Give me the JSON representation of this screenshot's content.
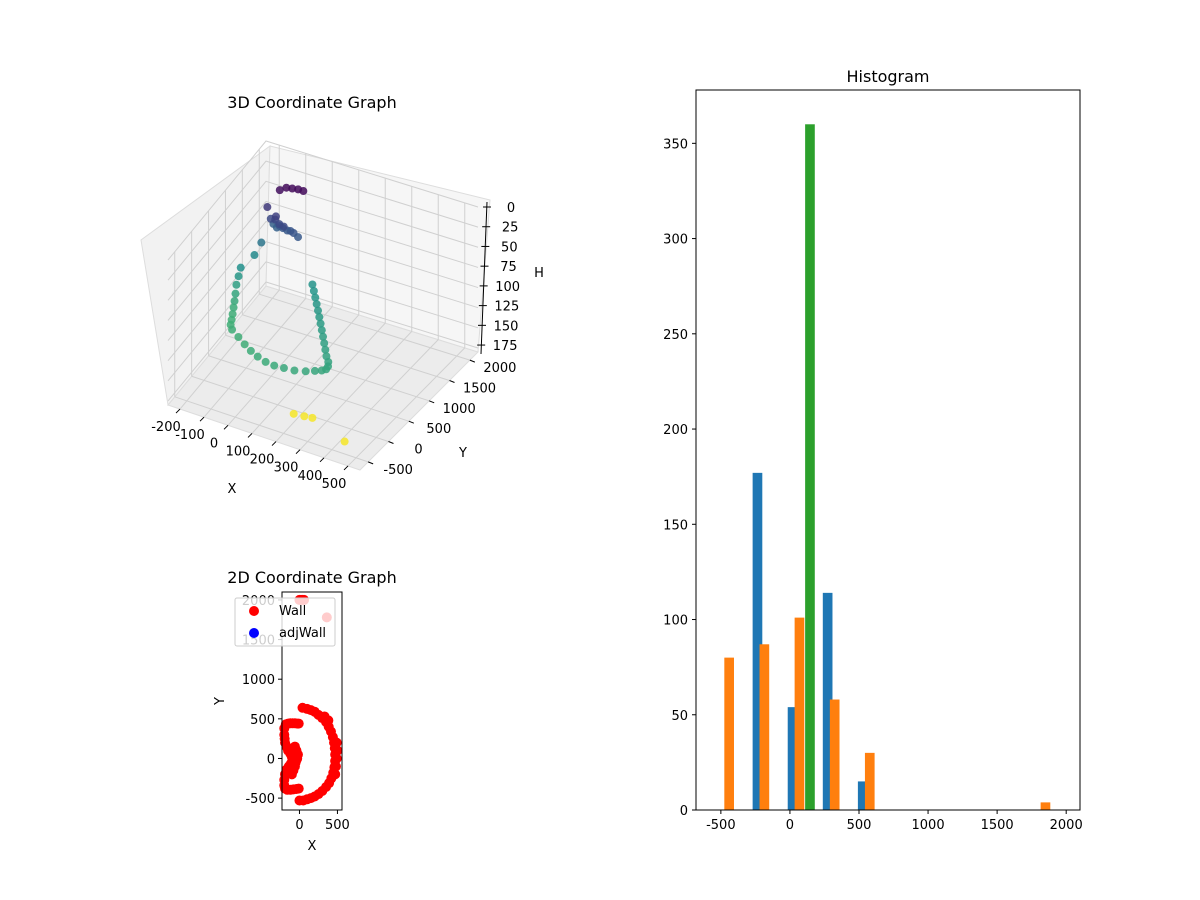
{
  "chart_data": [
    {
      "type": "scatter",
      "projection": "3d",
      "title": "3D Coordinate Graph",
      "xlabel": "X",
      "ylabel": "Y",
      "zlabel": "H",
      "xlim": [
        -250,
        550
      ],
      "ylim": [
        -700,
        2200
      ],
      "zlim": [
        0,
        180
      ],
      "z_inverted": true,
      "x_ticks": [
        -200,
        -100,
        0,
        100,
        200,
        300,
        400,
        500
      ],
      "y_ticks": [
        -500,
        0,
        500,
        1000,
        1500,
        2000
      ],
      "z_ticks": [
        0,
        25,
        50,
        75,
        100,
        125,
        150,
        175
      ],
      "colormap": "viridis",
      "grid": true,
      "points": [
        [
          -130,
          1500,
          55
        ],
        [
          -110,
          1450,
          55
        ],
        [
          -95,
          1420,
          50
        ],
        [
          -80,
          1400,
          50
        ],
        [
          -60,
          1380,
          50
        ],
        [
          -45,
          1360,
          48
        ],
        [
          -30,
          1340,
          48
        ],
        [
          -10,
          1320,
          50
        ],
        [
          -120,
          1350,
          40
        ],
        [
          -100,
          1330,
          38
        ],
        [
          -80,
          1300,
          40
        ],
        [
          -60,
          1280,
          40
        ],
        [
          -150,
          1300,
          70
        ],
        [
          -170,
          1250,
          85
        ],
        [
          -190,
          1000,
          90
        ],
        [
          -185,
          900,
          95
        ],
        [
          -180,
          800,
          100
        ],
        [
          -170,
          700,
          105
        ],
        [
          -160,
          600,
          108
        ],
        [
          -150,
          500,
          110
        ],
        [
          -140,
          400,
          112
        ],
        [
          -130,
          300,
          113
        ],
        [
          -120,
          200,
          113
        ],
        [
          -100,
          100,
          112
        ],
        [
          -60,
          0,
          112
        ],
        [
          -20,
          -100,
          112
        ],
        [
          20,
          -200,
          111
        ],
        [
          60,
          -280,
          110
        ],
        [
          100,
          -330,
          110
        ],
        [
          140,
          -360,
          109
        ],
        [
          180,
          -360,
          108
        ],
        [
          220,
          -340,
          108
        ],
        [
          260,
          -300,
          107
        ],
        [
          290,
          -250,
          106
        ],
        [
          310,
          -200,
          106
        ],
        [
          320,
          -150,
          106
        ],
        [
          320,
          -100,
          105
        ],
        [
          310,
          -30,
          104
        ],
        [
          290,
          50,
          103
        ],
        [
          270,
          150,
          102
        ],
        [
          250,
          250,
          101
        ],
        [
          230,
          350,
          100
        ],
        [
          210,
          450,
          99
        ],
        [
          190,
          550,
          98
        ],
        [
          170,
          650,
          97
        ],
        [
          150,
          750,
          96
        ],
        [
          130,
          850,
          95
        ],
        [
          110,
          950,
          94
        ],
        [
          90,
          1050,
          93
        ],
        [
          70,
          1150,
          92
        ],
        [
          -80,
          1500,
          5
        ],
        [
          -60,
          1520,
          5
        ],
        [
          -40,
          1540,
          5
        ],
        [
          -20,
          1540,
          5
        ],
        [
          -100,
          1460,
          8
        ],
        [
          -140,
          1400,
          30
        ],
        [
          -100,
          1350,
          35
        ],
        [
          180,
          -100,
          178
        ],
        [
          220,
          -80,
          178
        ],
        [
          250,
          -60,
          178
        ],
        [
          420,
          -300,
          178
        ]
      ]
    },
    {
      "type": "scatter",
      "title": "2D Coordinate Graph",
      "xlabel": "X",
      "ylabel": "Y",
      "xlim": [
        -230,
        560
      ],
      "ylim": [
        -650,
        2100
      ],
      "x_ticks": [
        0,
        500
      ],
      "y_ticks": [
        -500,
        0,
        500,
        1000,
        1500,
        2000
      ],
      "legend": {
        "placement": "upper left"
      },
      "series": [
        {
          "name": "Wall",
          "color": "#ff0000",
          "points": [
            [
              -180,
              430
            ],
            [
              -150,
              440
            ],
            [
              -120,
              445
            ],
            [
              -90,
              445
            ],
            [
              -60,
              445
            ],
            [
              -30,
              440
            ],
            [
              -10,
              440
            ],
            [
              -200,
              380
            ],
            [
              -200,
              300
            ],
            [
              -195,
              250
            ],
            [
              -190,
              200
            ],
            [
              -170,
              150
            ],
            [
              -150,
              100
            ],
            [
              -120,
              60
            ],
            [
              -100,
              20
            ],
            [
              -90,
              -20
            ],
            [
              -110,
              -60
            ],
            [
              -140,
              -100
            ],
            [
              -170,
              -140
            ],
            [
              -190,
              -200
            ],
            [
              -200,
              -270
            ],
            [
              -200,
              -340
            ],
            [
              -190,
              -380
            ],
            [
              -160,
              -395
            ],
            [
              -120,
              -395
            ],
            [
              -80,
              -390
            ],
            [
              -40,
              -385
            ],
            [
              -10,
              -380
            ],
            [
              -80,
              120
            ],
            [
              -60,
              150
            ],
            [
              -40,
              100
            ],
            [
              -20,
              50
            ],
            [
              -30,
              0
            ],
            [
              -50,
              -50
            ],
            [
              -60,
              -100
            ],
            [
              -80,
              -150
            ],
            [
              -100,
              -200
            ],
            [
              -70,
              80
            ],
            [
              -40,
              -20
            ],
            [
              -60,
              30
            ],
            [
              0,
              -530
            ],
            [
              50,
              -530
            ],
            [
              100,
              -515
            ],
            [
              150,
              -500
            ],
            [
              200,
              -480
            ],
            [
              250,
              -450
            ],
            [
              300,
              -410
            ],
            [
              350,
              -360
            ],
            [
              390,
              -310
            ],
            [
              420,
              -250
            ],
            [
              445,
              -180
            ],
            [
              460,
              -110
            ],
            [
              470,
              -30
            ],
            [
              470,
              50
            ],
            [
              465,
              130
            ],
            [
              455,
              200
            ],
            [
              440,
              270
            ],
            [
              415,
              340
            ],
            [
              385,
              400
            ],
            [
              350,
              460
            ],
            [
              300,
              510
            ],
            [
              250,
              550
            ],
            [
              200,
              590
            ],
            [
              150,
              610
            ],
            [
              100,
              625
            ],
            [
              40,
              640
            ],
            [
              490,
              0
            ],
            [
              500,
              100
            ],
            [
              490,
              200
            ],
            [
              480,
              -100
            ],
            [
              470,
              -200
            ],
            [
              330,
              530
            ],
            [
              380,
              480
            ],
            [
              0,
              2000
            ],
            [
              20,
              2000
            ],
            [
              40,
              2000
            ],
            [
              60,
              2000
            ],
            [
              360,
              1780
            ]
          ]
        },
        {
          "name": "adjWall",
          "color": "#0000ff",
          "points": []
        }
      ]
    },
    {
      "type": "bar",
      "title": "Histogram",
      "xlim": [
        -680,
        2100
      ],
      "ylim": [
        0,
        378
      ],
      "x_ticks": [
        -500,
        0,
        500,
        1000,
        1500,
        2000
      ],
      "y_ticks": [
        0,
        50,
        100,
        150,
        200,
        250,
        300,
        350
      ],
      "series": [
        {
          "color": "#1f77b4",
          "bars": [
            {
              "x": -235,
              "height": 177
            },
            {
              "x": 19,
              "height": 54
            },
            {
              "x": 273,
              "height": 114
            },
            {
              "x": 527,
              "height": 15
            }
          ]
        },
        {
          "color": "#ff7f0e",
          "bars": [
            {
              "x": -440,
              "height": 80
            },
            {
              "x": -185,
              "height": 87
            },
            {
              "x": 69,
              "height": 101
            },
            {
              "x": 324,
              "height": 58
            },
            {
              "x": 578,
              "height": 30
            },
            {
              "x": 1850,
              "height": 4
            }
          ]
        },
        {
          "color": "#2ca02c",
          "bars": [
            {
              "x": 145,
              "height": 360
            }
          ]
        }
      ]
    }
  ]
}
